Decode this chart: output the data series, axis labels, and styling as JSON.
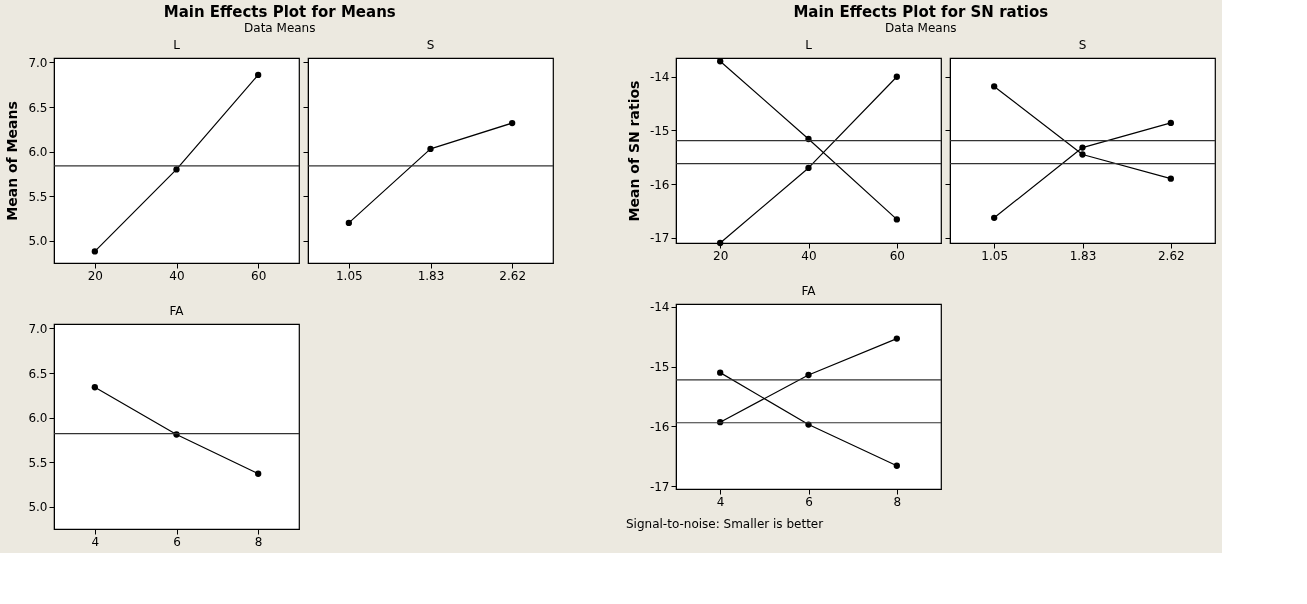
{
  "chart_data": [
    {
      "type": "line",
      "title": "Main Effects Plot for Means",
      "subtitle": "Data Means",
      "annotations": [
        "L"
      ],
      "ylabel": "Mean of Means",
      "categories": [
        "20",
        "40",
        "60"
      ],
      "series": [
        {
          "color": "#000000",
          "values": [
            4.88,
            5.8,
            6.86
          ]
        }
      ],
      "ylim": [
        4.75,
        7.05
      ],
      "yticks": [
        {
          "value": 5,
          "label": "5.0"
        },
        5.5,
        {
          "value": 6,
          "label": "6.0"
        },
        6.5,
        {
          "value": 7,
          "label": "7.0"
        }
      ],
      "ref_lines": [
        {
          "axis": "y",
          "value": 5.84,
          "color": "#333333"
        }
      ],
      "marker": "circle",
      "grid": false
    },
    {
      "type": "line",
      "annotations": [
        "S"
      ],
      "categories": [
        "1.05",
        "1.83",
        "2.62"
      ],
      "series": [
        {
          "color": "#000000",
          "values": [
            5.2,
            6.03,
            6.32
          ]
        }
      ],
      "ylim": [
        4.75,
        7.05
      ],
      "yticks": [
        5,
        5.5,
        6,
        6.5,
        7
      ],
      "ref_lines": [
        {
          "axis": "y",
          "value": 5.84,
          "color": "#333333"
        }
      ],
      "marker": "circle",
      "grid": false,
      "tick_labels": "x"
    },
    {
      "type": "line",
      "annotations": [
        "FA"
      ],
      "categories": [
        "4",
        "6",
        "8"
      ],
      "series": [
        {
          "color": "#000000",
          "values": [
            6.34,
            5.81,
            5.37
          ]
        }
      ],
      "ylim": [
        4.75,
        7.05
      ],
      "yticks": [
        {
          "value": 5,
          "label": "5.0"
        },
        5.5,
        {
          "value": 6,
          "label": "6.0"
        },
        6.5,
        {
          "value": 7,
          "label": "7.0"
        }
      ],
      "ref_lines": [
        {
          "axis": "y",
          "value": 5.82,
          "color": "#333333"
        }
      ],
      "marker": "circle",
      "grid": false
    },
    {
      "type": "line",
      "title": "Main Effects Plot for SN ratios",
      "subtitle": "Data Means",
      "annotations": [
        "L"
      ],
      "ylabel": "Mean of SN ratios",
      "categories": [
        "20",
        "40",
        "60"
      ],
      "series": [
        {
          "color": "#000000",
          "values": [
            -13.71,
            -15.16,
            -16.66
          ]
        },
        {
          "color": "#000000",
          "values": [
            -17.1,
            -15.7,
            -14.0
          ]
        }
      ],
      "ylim": [
        -17.1,
        -13.65
      ],
      "yticks": [
        -17,
        -16,
        -15,
        -14
      ],
      "ref_lines": [
        {
          "axis": "y",
          "value": -15.19,
          "color": "#333333"
        },
        {
          "axis": "y",
          "value": -15.62,
          "color": "#333333"
        }
      ],
      "marker": "circle",
      "grid": false
    },
    {
      "type": "line",
      "annotations": [
        "S"
      ],
      "categories": [
        "1.05",
        "1.83",
        "2.62"
      ],
      "series": [
        {
          "color": "#000000",
          "values": [
            -14.18,
            -15.45,
            -15.9
          ]
        },
        {
          "color": "#000000",
          "values": [
            -16.63,
            -15.32,
            -14.86
          ]
        }
      ],
      "ylim": [
        -17.1,
        -13.65
      ],
      "yticks": [
        -17,
        -16,
        -15,
        -14
      ],
      "ref_lines": [
        {
          "axis": "y",
          "value": -15.19,
          "color": "#333333"
        },
        {
          "axis": "y",
          "value": -15.62,
          "color": "#333333"
        }
      ],
      "marker": "circle",
      "grid": false,
      "tick_labels": "x"
    },
    {
      "type": "line",
      "annotations": [
        "FA",
        "Signal-to-noise: Smaller is better"
      ],
      "categories": [
        "4",
        "6",
        "8"
      ],
      "series": [
        {
          "color": "#000000",
          "values": [
            -15.1,
            -15.97,
            -16.66
          ]
        },
        {
          "color": "#000000",
          "values": [
            -15.93,
            -15.14,
            -14.53
          ]
        }
      ],
      "ylim": [
        -17.05,
        -13.95
      ],
      "yticks": [
        -17,
        -16,
        -15,
        -14
      ],
      "ref_lines": [
        {
          "axis": "y",
          "value": -15.22,
          "color": "#333333"
        },
        {
          "axis": "y",
          "value": -15.94,
          "color": "#333333"
        }
      ],
      "marker": "circle",
      "grid": false
    }
  ]
}
